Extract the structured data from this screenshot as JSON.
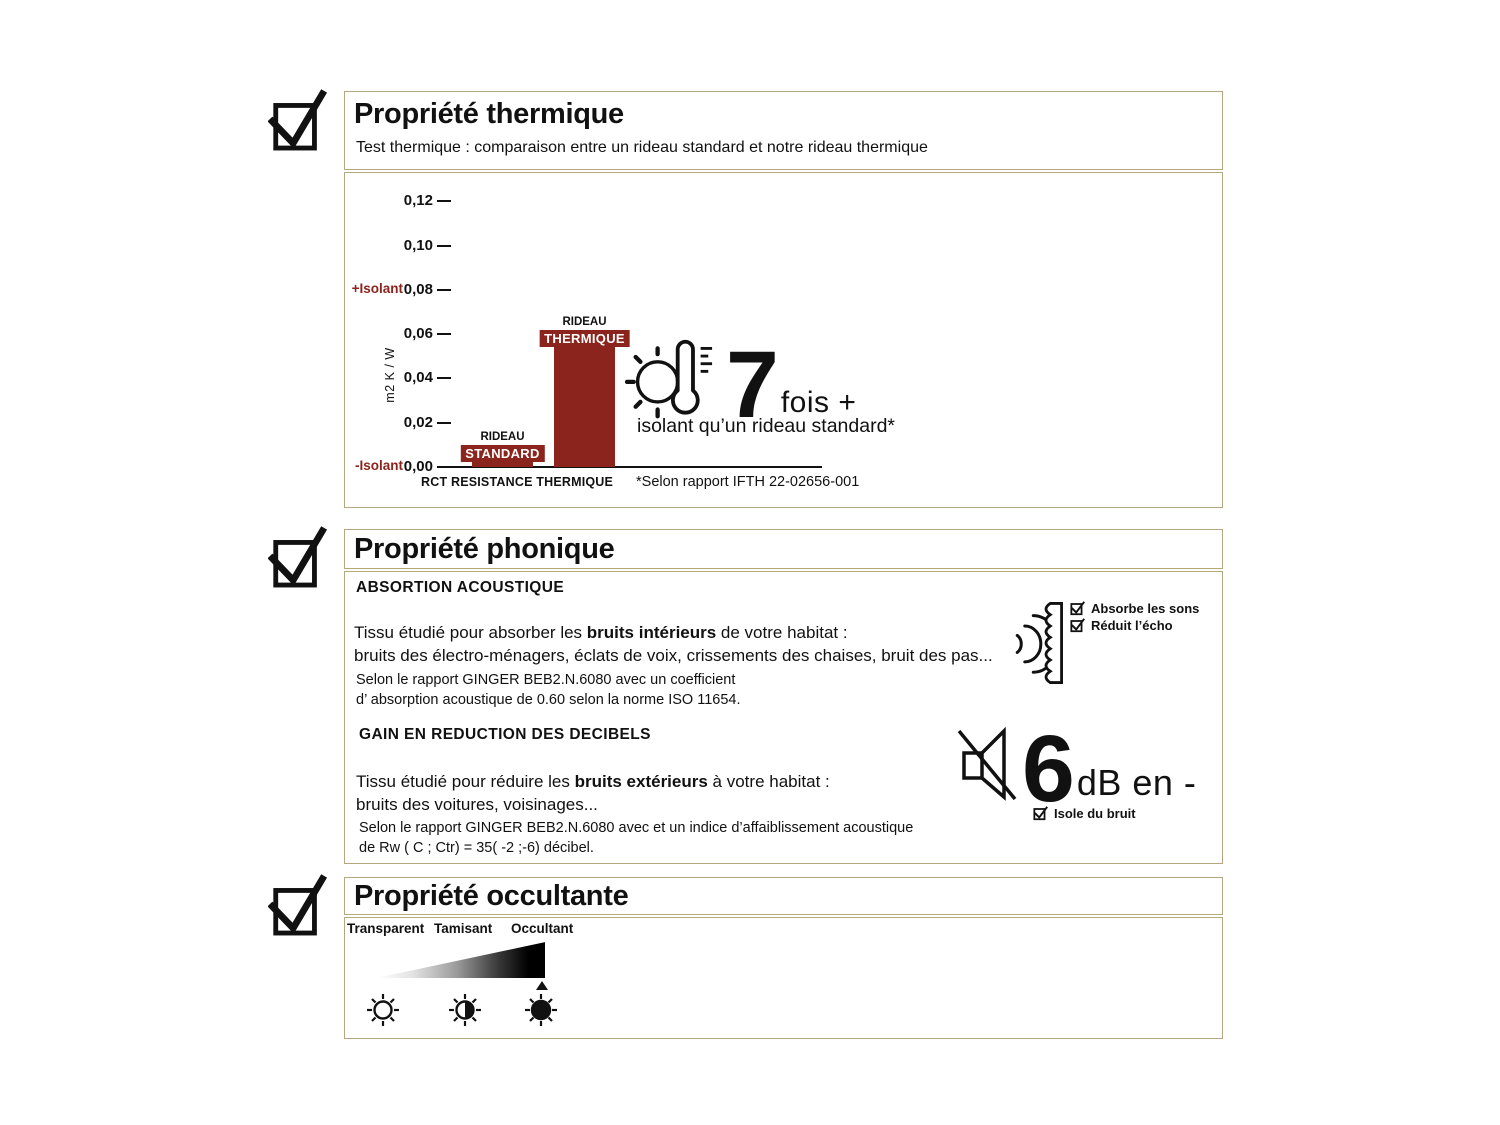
{
  "colors": {
    "accent_red": "#8C241E",
    "border_tan": "#B5A87E",
    "text": "#111111"
  },
  "icons": {
    "section_check": "checked-checkbox-icon",
    "thermal_highlight": "sun-thermometer-icon",
    "absorption": "sound-waves-fabric-icon",
    "mute": "muted-speaker-icon",
    "sun_levels": [
      "sun-outline-icon",
      "sun-half-filled-icon",
      "sun-filled-icon"
    ],
    "marker": "up-triangle-marker"
  },
  "sections": {
    "thermal": {
      "title": "Propriété thermique",
      "subtitle": "Test thermique : comparaison entre un rideau standard et notre rideau thermique",
      "highlight": {
        "number": "7",
        "suffix": "fois +",
        "caption": "isolant qu’un rideau standard*"
      }
    },
    "phonic": {
      "title": "Propriété phonique",
      "absorption": {
        "heading": "ABSORTION ACOUSTIQUE",
        "intro_prefix": "Tissu étudié pour absorber les ",
        "intro_bold": "bruits intérieurs",
        "intro_suffix": " de votre habitat :",
        "intro_line2": "bruits des électro-ménagers, éclats de voix, crissements des chaises, bruit des pas...",
        "note_line1": "Selon le rapport GINGER BEB2.N.6080 avec un coefficient",
        "note_line2": "d’ absorption acoustique de 0.60 selon la norme ISO 11654.",
        "checks": [
          "Absorbe les sons",
          "Réduit l’écho"
        ]
      },
      "reduction": {
        "heading": "GAIN EN REDUCTION DES DECIBELS",
        "intro_prefix": "Tissu étudié pour réduire les ",
        "intro_bold": "bruits extérieurs",
        "intro_suffix": " à votre habitat :",
        "intro_line2": "bruits des voitures, voisinages...",
        "note_line1": "Selon le rapport GINGER BEB2.N.6080 avec et un indice d’affaiblissement acoustique",
        "note_line2": "de Rw ( C ; Ctr) = 35( -2 ;-6) décibel.",
        "highlight": {
          "number": "6",
          "suffix": "dB en -",
          "check": "Isole du bruit"
        }
      }
    },
    "occulting": {
      "title": "Propriété occultante",
      "scale_labels": [
        "Transparent",
        "Tamisant",
        "Occultant"
      ],
      "selected_level": "Occultant"
    }
  },
  "chart_data": {
    "type": "bar",
    "title": "",
    "ylabel": "m2 K / W",
    "xlabel": "RCT RESISTANCE THERMIQUE",
    "footnote": "*Selon rapport IFTH 22-02656-001",
    "ylim": [
      0,
      0.13
    ],
    "grid": false,
    "yticks": [
      {
        "label": "0,12",
        "value": 0.12
      },
      {
        "label": "0,10",
        "value": 0.1
      },
      {
        "label": "0,08",
        "value": 0.08
      },
      {
        "label": "0,06",
        "value": 0.06
      },
      {
        "label": "0,04",
        "value": 0.04
      },
      {
        "label": "0,02",
        "value": 0.02
      },
      {
        "label": "0,00",
        "value": 0.0
      }
    ],
    "annotations": [
      {
        "text": "+Isolant",
        "value": 0.08
      },
      {
        "text": "-Isolant",
        "value": 0.0
      }
    ],
    "bars": [
      {
        "category": "RIDEAU STANDARD",
        "label_top": "RIDEAU",
        "label_chip": "STANDARD",
        "value": 0.01
      },
      {
        "category": "RIDEAU THERMIQUE",
        "label_top": "RIDEAU",
        "label_chip": "THERMIQUE",
        "value": 0.062
      }
    ]
  }
}
